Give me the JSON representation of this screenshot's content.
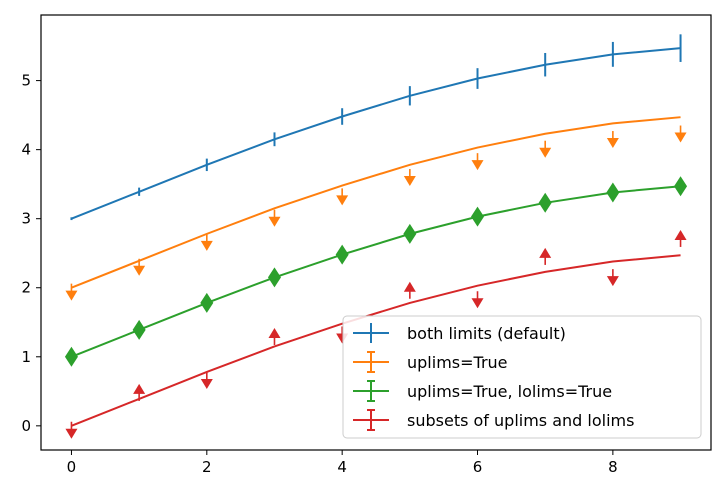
{
  "chart_data": {
    "type": "line",
    "title": "",
    "xlabel": "",
    "ylabel": "",
    "xlim": [
      -0.45,
      9.45
    ],
    "ylim": [
      -0.35,
      5.95
    ],
    "xticks": [
      0,
      2,
      4,
      6,
      8
    ],
    "yticks": [
      0,
      1,
      2,
      3,
      4,
      5
    ],
    "grid": false,
    "legend_position": "lower-right",
    "x": [
      0,
      1,
      2,
      3,
      4,
      5,
      6,
      7,
      8,
      9
    ],
    "series": [
      {
        "name": "both limits (default)",
        "color": "#1f77b4",
        "marker": "bar",
        "values": [
          3.0,
          3.39,
          3.78,
          4.15,
          4.48,
          4.78,
          5.03,
          5.23,
          5.38,
          5.47
        ],
        "yerr": [
          0.02,
          0.06,
          0.09,
          0.1,
          0.12,
          0.14,
          0.15,
          0.17,
          0.18,
          0.2
        ]
      },
      {
        "name": "uplims=True",
        "color": "#ff7f0e",
        "marker": "down-arrow",
        "values": [
          2.0,
          2.39,
          2.78,
          3.15,
          3.48,
          3.78,
          4.03,
          4.23,
          4.38,
          4.47
        ],
        "yerr": [
          0.1,
          0.13,
          0.16,
          0.18,
          0.2,
          0.22,
          0.24,
          0.26,
          0.27,
          0.28
        ]
      },
      {
        "name": "uplims=True, lolims=True",
        "color": "#2ca02c",
        "marker": "diamond",
        "values": [
          1.0,
          1.39,
          1.78,
          2.15,
          2.48,
          2.78,
          3.03,
          3.23,
          3.38,
          3.47
        ],
        "yerr": [
          0,
          0,
          0,
          0,
          0,
          0,
          0,
          0,
          0,
          0
        ]
      },
      {
        "name": "subsets of uplims and lolims",
        "color": "#d62728",
        "marker": "mixed-arrow",
        "values": [
          0.0,
          0.39,
          0.78,
          1.15,
          1.48,
          1.78,
          2.03,
          2.23,
          2.38,
          2.47
        ],
        "yerr": [
          0.1,
          0.13,
          0.16,
          0.18,
          0.2,
          0.22,
          0.24,
          0.26,
          0.27,
          0.28
        ],
        "limit_direction": [
          "up",
          "lo",
          "up",
          "lo",
          "up",
          "lo",
          "up",
          "lo",
          "up",
          "lo"
        ]
      }
    ]
  }
}
